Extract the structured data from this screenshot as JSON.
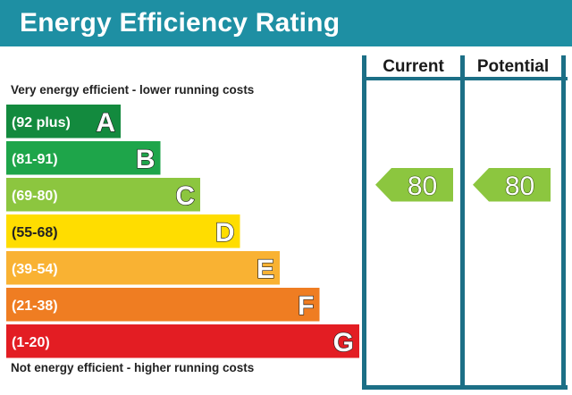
{
  "header": {
    "title": "Energy Efficiency Rating"
  },
  "columns": {
    "current_label": "Current",
    "potential_label": "Potential"
  },
  "captions": {
    "top": "Very energy efficient - lower running costs",
    "bottom": "Not energy efficient - higher running costs"
  },
  "chart_data": {
    "type": "bar",
    "title": "Energy Efficiency Rating",
    "bands": [
      {
        "letter": "A",
        "range": "(92 plus)",
        "color": "#138a3e"
      },
      {
        "letter": "B",
        "range": "(81-91)",
        "color": "#1ea54a"
      },
      {
        "letter": "C",
        "range": "(69-80)",
        "color": "#8cc63f"
      },
      {
        "letter": "D",
        "range": "(55-68)",
        "color": "#ffdd00"
      },
      {
        "letter": "E",
        "range": "(39-54)",
        "color": "#f9b233"
      },
      {
        "letter": "F",
        "range": "(21-38)",
        "color": "#ef7d22"
      },
      {
        "letter": "G",
        "range": "(1-20)",
        "color": "#e31d23"
      }
    ],
    "current": {
      "value": 80,
      "band": "C",
      "color": "#8cc63f"
    },
    "potential": {
      "value": 80,
      "band": "C",
      "color": "#8cc63f"
    }
  }
}
